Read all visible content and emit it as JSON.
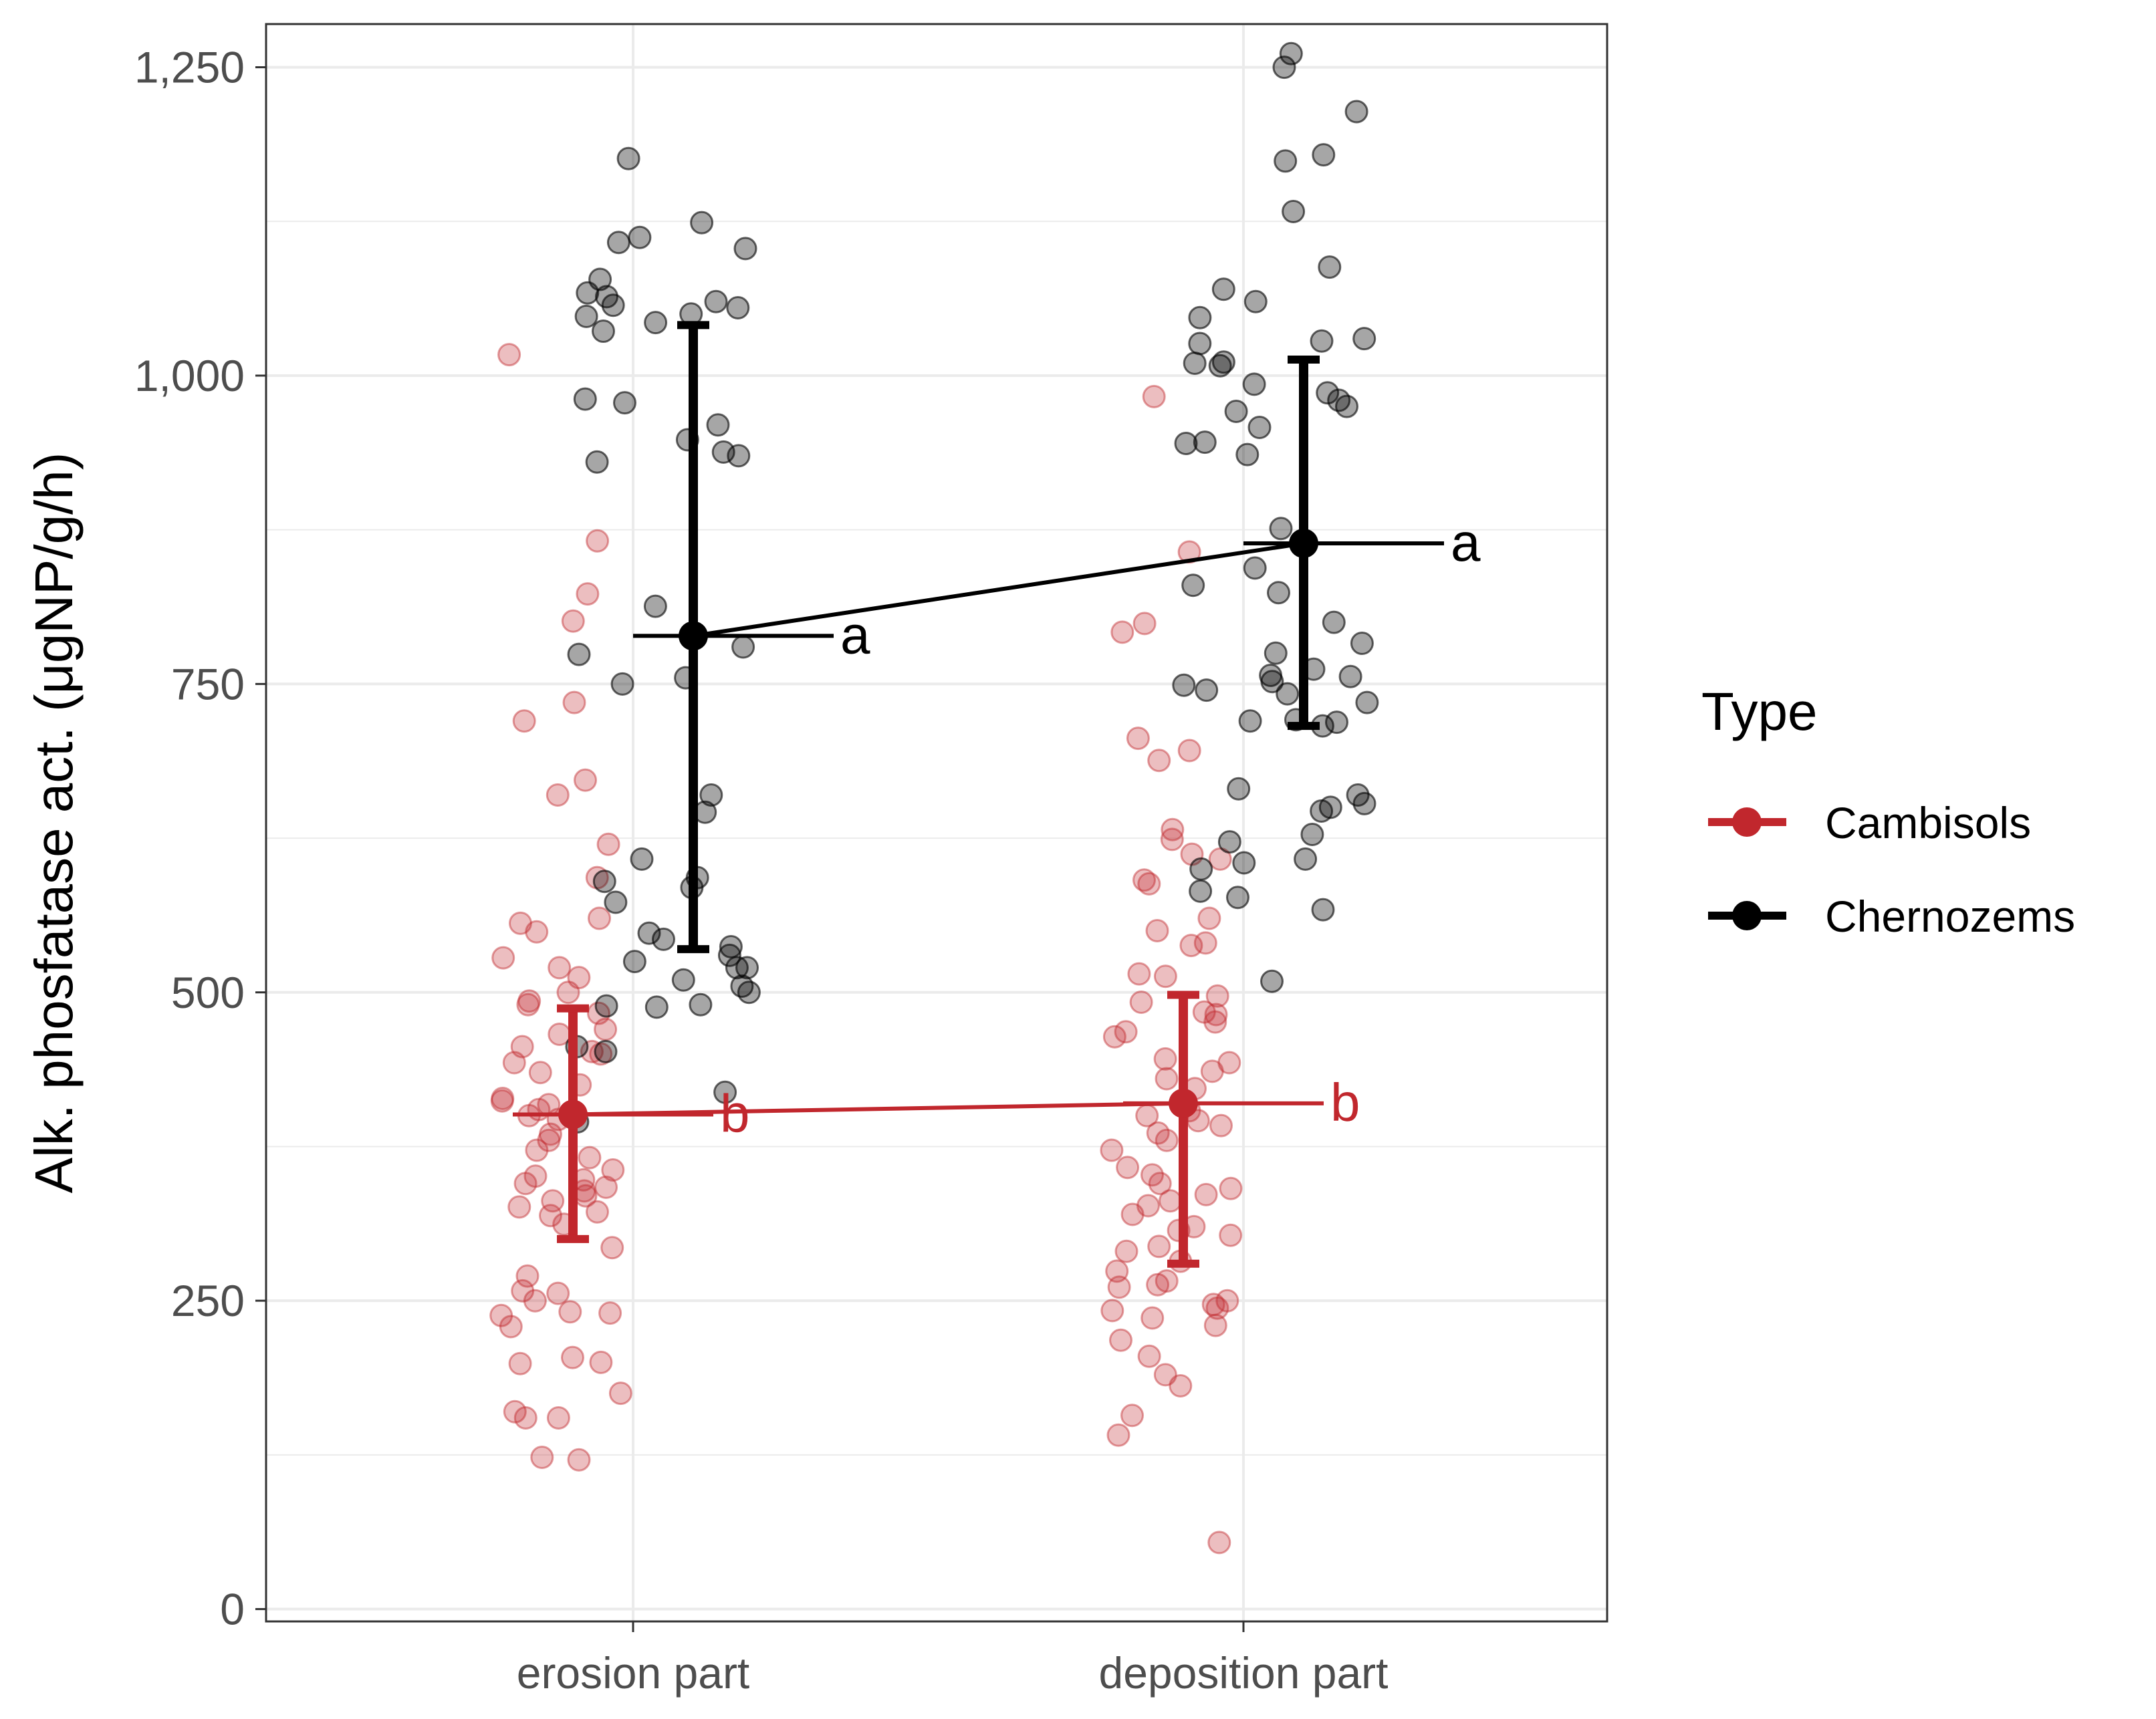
{
  "chart_data": {
    "type": "scatter",
    "title": "",
    "xlabel": "",
    "ylabel": "Alk. phosfatase act. (μgNP/g/h)",
    "ylim": [
      -10,
      1285
    ],
    "yticks": [
      0,
      250,
      500,
      750,
      1000,
      1250
    ],
    "ytick_labels": [
      "0",
      "250",
      "500",
      "750",
      "1,000",
      "1,250"
    ],
    "categories": [
      "erosion part",
      "deposition part"
    ],
    "legend": {
      "title": "Type",
      "position": "right",
      "entries": [
        "Cambisols",
        "Chernozems"
      ]
    },
    "series": [
      {
        "name": "Cambisols",
        "color": "#c1272d",
        "means": [
          401,
          410
        ],
        "ci_low": [
          300,
          280
        ],
        "ci_high": [
          487,
          498
        ],
        "letters": [
          "b",
          "b"
        ],
        "points": [
          [
            1017,
            866,
            823,
            801,
            735,
            720,
            672,
            660,
            620,
            593,
            560,
            556,
            549,
            528,
            520,
            512,
            500,
            493,
            490,
            483,
            470,
            466,
            456,
            452,
            450,
            443,
            435,
            425,
            414,
            412,
            409,
            405,
            400,
            397,
            385,
            380,
            372,
            366,
            356,
            351,
            348,
            345,
            342,
            339,
            335,
            331,
            326,
            322,
            319,
            312,
            293,
            270,
            258,
            256,
            250,
            241,
            240,
            238,
            229,
            204,
            200,
            199,
            175,
            160,
            155,
            155,
            123,
            121
          ],
          [
            983,
            857,
            799,
            792,
            706,
            696,
            688,
            632,
            624,
            612,
            608,
            591,
            588,
            560,
            550,
            540,
            538,
            515,
            513,
            497,
            492,
            484,
            482,
            476,
            468,
            464,
            446,
            443,
            436,
            430,
            422,
            404,
            400,
            396,
            392,
            386,
            380,
            372,
            358,
            352,
            345,
            341,
            336,
            331,
            327,
            320,
            310,
            307,
            303,
            294,
            290,
            282,
            274,
            266,
            263,
            261,
            250,
            247,
            244,
            242,
            236,
            230,
            218,
            205,
            190,
            181,
            157,
            141,
            54
          ]
        ]
      },
      {
        "name": "Chernozems",
        "color": "#000000",
        "means": [
          789,
          864
        ],
        "ci_low": [
          535,
          716
        ],
        "ci_high": [
          1041,
          1013
        ],
        "letters": [
          "a",
          "a"
        ],
        "points": [
          [
            1176,
            1124,
            1112,
            1108,
            1103,
            1078,
            1067,
            1064,
            1060,
            1057,
            1055,
            1050,
            1048,
            1043,
            1036,
            981,
            978,
            960,
            948,
            938,
            935,
            930,
            813,
            780,
            774,
            755,
            750,
            660,
            646,
            608,
            593,
            590,
            585,
            573,
            548,
            543,
            537,
            530,
            525,
            520,
            520,
            510,
            505,
            500,
            490,
            489,
            488,
            456,
            452,
            419,
            395
          ],
          [
            1261,
            1250,
            1214,
            1179,
            1174,
            1133,
            1088,
            1070,
            1060,
            1047,
            1030,
            1028,
            1026,
            1011,
            1010,
            1008,
            993,
            986,
            980,
            975,
            971,
            958,
            946,
            945,
            936,
            876,
            844,
            830,
            824,
            800,
            783,
            775,
            762,
            757,
            756,
            752,
            749,
            745,
            742,
            735,
            721,
            720,
            719,
            716,
            665,
            660,
            653,
            650,
            647,
            628,
            622,
            608,
            605,
            600,
            582,
            577,
            567,
            509
          ]
        ]
      }
    ]
  }
}
